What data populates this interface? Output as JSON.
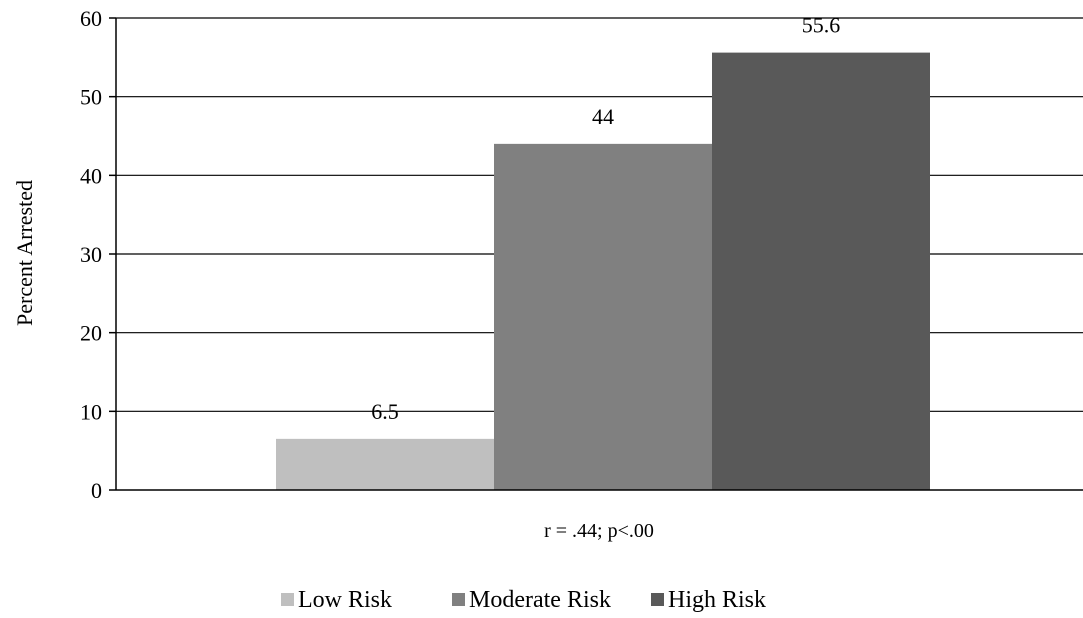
{
  "chart_data": {
    "type": "bar",
    "categories": [
      ""
    ],
    "series": [
      {
        "name": "Low Risk",
        "values": [
          6.5
        ],
        "color": "#bfbfbf"
      },
      {
        "name": "Moderate Risk",
        "values": [
          44
        ],
        "color": "#808080"
      },
      {
        "name": "High Risk",
        "values": [
          55.6
        ],
        "color": "#595959"
      }
    ],
    "data_labels": [
      "6.5",
      "44",
      "55.6"
    ],
    "title": "",
    "xlabel": "r = .44; p<.00",
    "ylabel": "Percent Arrested",
    "ylim": [
      0,
      60
    ],
    "yticks": [
      0,
      10,
      20,
      30,
      40,
      50,
      60
    ],
    "grid": true,
    "legend_position": "bottom"
  }
}
